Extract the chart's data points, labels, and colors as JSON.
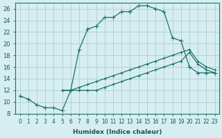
{
  "xlabel": "Humidex (Indice chaleur)",
  "ylabel": "",
  "bg_color": "#d6eef0",
  "grid_color": "#b0cdd0",
  "line_color": "#1a7070",
  "xlim": [
    -0.5,
    23.5
  ],
  "ylim": [
    8,
    27
  ],
  "xticks": [
    0,
    1,
    2,
    3,
    4,
    5,
    6,
    7,
    8,
    9,
    10,
    11,
    12,
    13,
    14,
    15,
    16,
    17,
    18,
    19,
    20,
    21,
    22,
    23
  ],
  "yticks": [
    8,
    10,
    12,
    14,
    16,
    18,
    20,
    22,
    24,
    26
  ],
  "curve1_x": [
    0,
    1,
    2,
    3,
    4,
    5,
    6,
    7,
    8,
    9,
    10,
    11,
    12,
    13,
    14,
    15,
    16,
    17,
    18,
    19,
    20,
    21,
    22,
    23
  ],
  "curve1_y": [
    11,
    10.5,
    9.5,
    9,
    9,
    8.5,
    12,
    19,
    22.5,
    23,
    24.5,
    24.5,
    25.5,
    25.5,
    26.5,
    26.5,
    26,
    25.5,
    21,
    20.5,
    16,
    15,
    15,
    15
  ],
  "curve2_x": [
    5,
    6,
    7,
    8,
    9,
    10,
    11,
    12,
    13,
    14,
    15,
    16,
    17,
    18,
    19,
    20,
    21,
    22,
    23
  ],
  "curve2_y": [
    12,
    12,
    12,
    12,
    12,
    12.5,
    13,
    13.5,
    14,
    14.5,
    15,
    15.5,
    16,
    16.5,
    17,
    18.5,
    16.5,
    15.5,
    15
  ],
  "curve3_x": [
    5,
    6,
    7,
    8,
    9,
    10,
    11,
    12,
    13,
    14,
    15,
    16,
    17,
    18,
    19,
    20,
    21,
    22,
    23
  ],
  "curve3_y": [
    12,
    12,
    12.5,
    13,
    13.5,
    14,
    14.5,
    15,
    15.5,
    16,
    16.5,
    17,
    17.5,
    18,
    18.5,
    19,
    17,
    16,
    15.5
  ]
}
